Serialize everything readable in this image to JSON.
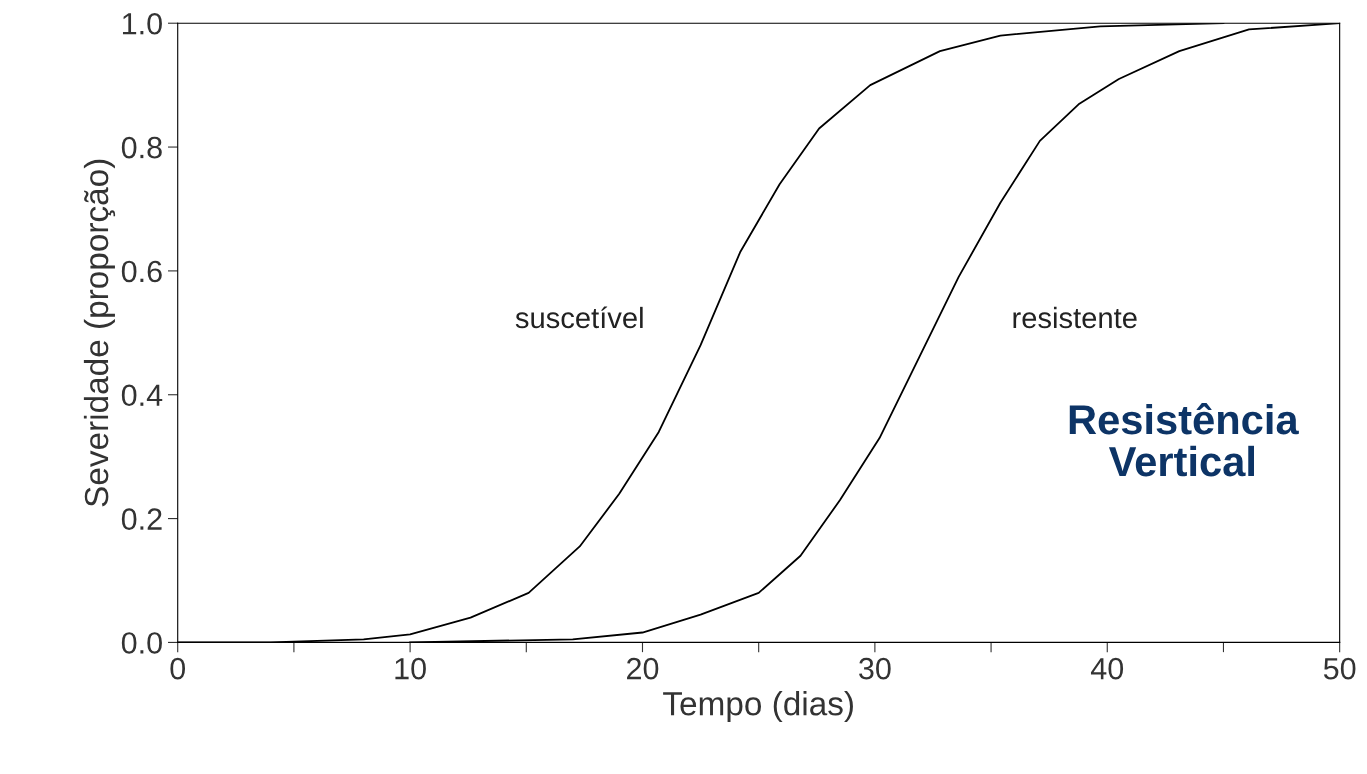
{
  "chart_data": {
    "type": "line",
    "xlabel": "Tempo (dias)",
    "ylabel": "Severidade (proporção)",
    "series": [
      {
        "color": "#000000",
        "x": [
          0,
          4,
          8,
          10,
          12.6,
          15.1,
          17.3,
          19,
          20.7,
          22.5,
          24.2,
          25.9,
          27.6,
          29.8,
          32.8,
          35.4,
          39.7,
          45
        ],
        "values": [
          0,
          0,
          0.005,
          0.013,
          0.04,
          0.08,
          0.155,
          0.24,
          0.34,
          0.48,
          0.63,
          0.74,
          0.83,
          0.9,
          0.955,
          0.98,
          0.995,
          1.0
        ]
      },
      {
        "color": "#000000",
        "x": [
          10,
          17,
          20,
          22.5,
          25,
          26.8,
          28.5,
          30.2,
          31.9,
          33.6,
          35.4,
          37.1,
          38.8,
          40.5,
          43.1,
          46.1,
          50
        ],
        "values": [
          0,
          0.005,
          0.016,
          0.045,
          0.08,
          0.14,
          0.23,
          0.33,
          0.46,
          0.59,
          0.71,
          0.81,
          0.87,
          0.91,
          0.955,
          0.99,
          1.0
        ]
      }
    ],
    "xlim": [
      0,
      50
    ],
    "ylim": [
      0,
      1.0
    ],
    "xticks": [
      0,
      {
        "value": 5,
        "label": null
      },
      10,
      {
        "value": 15,
        "label": null
      },
      20,
      {
        "value": 25,
        "label": null
      },
      30,
      {
        "value": 35,
        "label": null
      },
      40,
      {
        "value": 45,
        "label": null
      },
      50
    ],
    "yticks": [
      {
        "value": 0,
        "label": "0.0"
      },
      {
        "value": 0.2,
        "label": "0.2"
      },
      {
        "value": 0.4,
        "label": "0.4"
      },
      {
        "value": 0.6,
        "label": "0.6"
      },
      {
        "value": 0.8,
        "label": "0.8"
      },
      {
        "value": 1.0,
        "label": "1.0"
      }
    ],
    "annotations": [
      "suscetível",
      "resistente",
      "Resistência\nVertical"
    ],
    "grid": false,
    "legend": false,
    "marker": "none",
    "line_style": "solid"
  }
}
